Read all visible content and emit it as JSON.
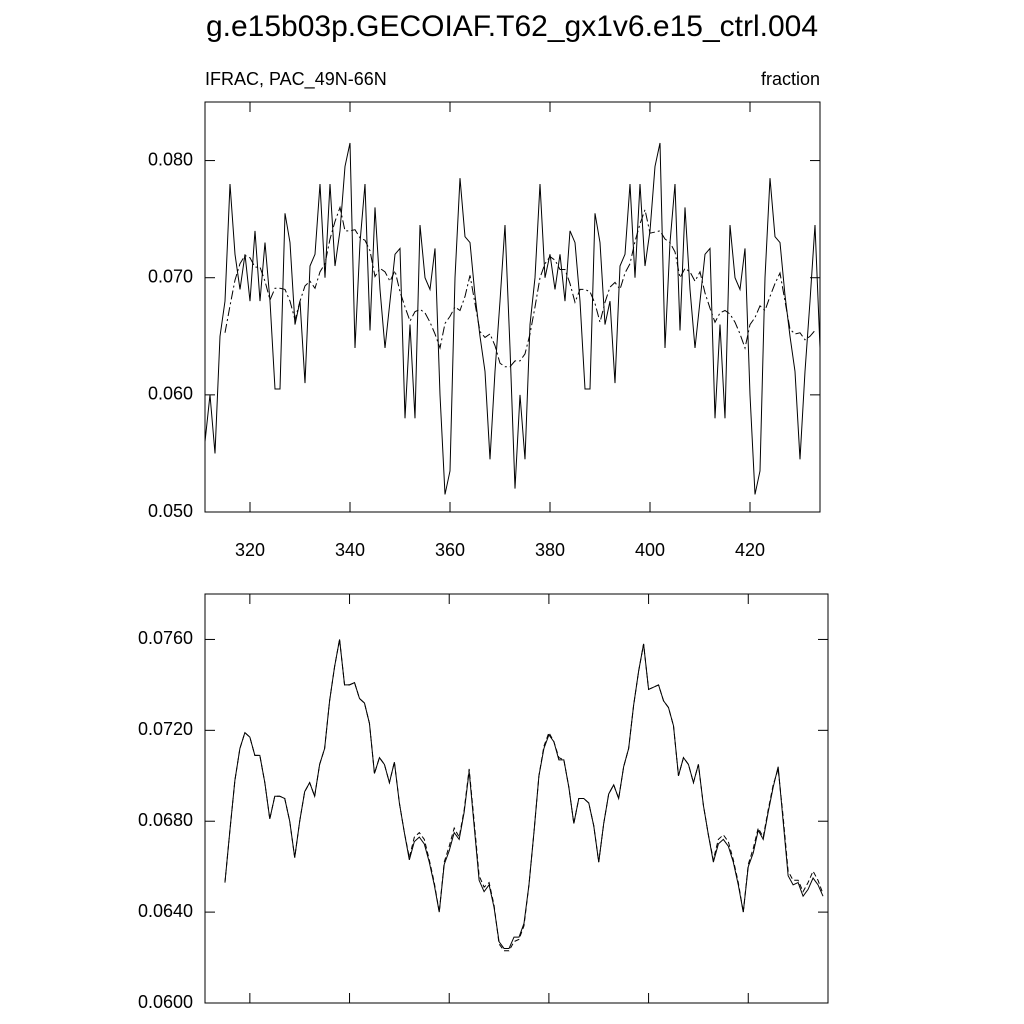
{
  "title": "g.e15b03p.GECOIAF.T62_gx1v6.e15_ctrl.004",
  "chart_data": [
    {
      "type": "line",
      "left_string": "IFRAC, PAC_49N-66N",
      "right_string": "fraction",
      "xlim": [
        311,
        434
      ],
      "ylim": [
        0.05,
        0.085
      ],
      "xticks": [
        320,
        340,
        360,
        380,
        400,
        420
      ],
      "yticks": [
        {
          "value": 0.05,
          "label": "0.050"
        },
        {
          "value": 0.06,
          "label": "0.060"
        },
        {
          "value": 0.07,
          "label": "0.070"
        },
        {
          "value": 0.08,
          "label": "0.080"
        }
      ],
      "xticklabels": true,
      "series": [
        {
          "color": "#000000",
          "style": "solid",
          "x": [
            311,
            312,
            313,
            314,
            315,
            316,
            317,
            318,
            319,
            320,
            321,
            322,
            323,
            324,
            325,
            326,
            327,
            328,
            329,
            330,
            331,
            332,
            333,
            334,
            335,
            336,
            337,
            338,
            339,
            340,
            341,
            342,
            343,
            344,
            345,
            346,
            347,
            348,
            349,
            350,
            351,
            352,
            353,
            354,
            355,
            356,
            357,
            358,
            359,
            360,
            361,
            362,
            363,
            364,
            365,
            366,
            367,
            368,
            369,
            370,
            371,
            372,
            373,
            374,
            375,
            376,
            377,
            378,
            379,
            380,
            381,
            382,
            383,
            384,
            385,
            386,
            387,
            388,
            389,
            390,
            391,
            392,
            393,
            394,
            395,
            396,
            397,
            398,
            399,
            400,
            401,
            402,
            403,
            404,
            405,
            406,
            407,
            408,
            409,
            410,
            411,
            412,
            413,
            414,
            415,
            416,
            417,
            418,
            419,
            420,
            421,
            422,
            423,
            424,
            425,
            426,
            427,
            428,
            429,
            430,
            431,
            432,
            433,
            434
          ],
          "values": [
            0.056,
            0.06,
            0.055,
            0.065,
            0.068,
            0.078,
            0.072,
            0.069,
            0.072,
            0.068,
            0.074,
            0.068,
            0.073,
            0.068,
            0.0605,
            0.0605,
            0.0755,
            0.073,
            0.066,
            0.068,
            0.061,
            0.071,
            0.072,
            0.078,
            0.07,
            0.078,
            0.071,
            0.074,
            0.0795,
            0.0815,
            0.064,
            0.073,
            0.078,
            0.0655,
            0.076,
            0.069,
            0.064,
            0.068,
            0.072,
            0.0725,
            0.058,
            0.066,
            0.058,
            0.0745,
            0.07,
            0.069,
            0.0725,
            0.06,
            0.0515,
            0.0535,
            0.07,
            0.0785,
            0.0735,
            0.073,
            0.0685,
            0.065,
            0.062,
            0.0545,
            0.062,
            0.068,
            0.0745,
            0.064,
            0.052,
            0.06,
            0.0545,
            0.066,
            0.07,
            0.078,
            0.07,
            0.072,
            0.069,
            0.072,
            0.068,
            0.074,
            0.073,
            0.068,
            0.0605,
            0.0605,
            0.0755,
            0.073,
            0.066,
            0.068,
            0.061,
            0.071,
            0.072,
            0.078,
            0.07,
            0.078,
            0.071,
            0.074,
            0.0795,
            0.0815,
            0.064,
            0.073,
            0.078,
            0.0655,
            0.076,
            0.069,
            0.064,
            0.068,
            0.072,
            0.0725,
            0.058,
            0.066,
            0.058,
            0.0745,
            0.07,
            0.069,
            0.0725,
            0.06,
            0.0515,
            0.0535,
            0.07,
            0.0785,
            0.0735,
            0.073,
            0.0685,
            0.065,
            0.062,
            0.0545,
            0.062,
            0.068,
            0.0745,
            0.064
          ]
        },
        {
          "color": "#000000",
          "style": "dashdot",
          "x": [
            315,
            316,
            317,
            318,
            319,
            320,
            321,
            322,
            323,
            324,
            325,
            326,
            327,
            328,
            329,
            330,
            331,
            332,
            333,
            334,
            335,
            336,
            337,
            338,
            339,
            340,
            341,
            342,
            343,
            344,
            345,
            346,
            347,
            348,
            349,
            350,
            351,
            352,
            353,
            354,
            355,
            356,
            357,
            358,
            359,
            360,
            361,
            362,
            363,
            364,
            365,
            366,
            367,
            368,
            369,
            370,
            371,
            372,
            373,
            374,
            375,
            376,
            377,
            378,
            379,
            380,
            381,
            382,
            383,
            384,
            385,
            386,
            387,
            388,
            389,
            390,
            391,
            392,
            393,
            394,
            395,
            396,
            397,
            398,
            399,
            400,
            401,
            402,
            403,
            404,
            405,
            406,
            407,
            408,
            409,
            410,
            411,
            412,
            413,
            414,
            415,
            416,
            417,
            418,
            419,
            420,
            421,
            422,
            423,
            424,
            425,
            426,
            427,
            428,
            429,
            430,
            431,
            432,
            433
          ],
          "values": [
            0.0653,
            0.0676,
            0.0698,
            0.0712,
            0.0719,
            0.0717,
            0.0709,
            0.0709,
            0.0697,
            0.0681,
            0.0691,
            0.0691,
            0.069,
            0.068,
            0.0664,
            0.068,
            0.0693,
            0.0697,
            0.0691,
            0.0705,
            0.0712,
            0.0733,
            0.0748,
            0.076,
            0.074,
            0.074,
            0.0741,
            0.0734,
            0.0732,
            0.0723,
            0.0701,
            0.0708,
            0.0705,
            0.0697,
            0.0706,
            0.0688,
            0.0675,
            0.0663,
            0.0671,
            0.0673,
            0.067,
            0.0662,
            0.0652,
            0.064,
            0.0661,
            0.0667,
            0.0675,
            0.0672,
            0.0684,
            0.0702,
            0.0678,
            0.0654,
            0.0649,
            0.0652,
            0.0642,
            0.0627,
            0.0624,
            0.0624,
            0.0629,
            0.0629,
            0.0635,
            0.0652,
            0.0675,
            0.07,
            0.0712,
            0.0718,
            0.0715,
            0.0707,
            0.0707,
            0.0695,
            0.0679,
            0.069,
            0.069,
            0.0688,
            0.0678,
            0.0662,
            0.0679,
            0.0692,
            0.0696,
            0.069,
            0.0704,
            0.0712,
            0.0731,
            0.0746,
            0.0758,
            0.0738,
            0.0739,
            0.074,
            0.0733,
            0.073,
            0.0722,
            0.07,
            0.0708,
            0.0705,
            0.0697,
            0.0705,
            0.0687,
            0.0674,
            0.0662,
            0.067,
            0.0672,
            0.0669,
            0.0662,
            0.0652,
            0.064,
            0.066,
            0.0666,
            0.0676,
            0.0672,
            0.0684,
            0.0695,
            0.0704,
            0.068,
            0.0656,
            0.0652,
            0.0653,
            0.0647,
            0.065,
            0.0655
          ]
        }
      ]
    },
    {
      "type": "line",
      "xlim": [
        311,
        436
      ],
      "ylim": [
        0.06,
        0.078
      ],
      "xticks": [
        320,
        340,
        360,
        380,
        400,
        420
      ],
      "yticks": [
        {
          "value": 0.06,
          "label": "0.0600"
        },
        {
          "value": 0.064,
          "label": "0.0640"
        },
        {
          "value": 0.068,
          "label": "0.0680"
        },
        {
          "value": 0.072,
          "label": "0.0720"
        },
        {
          "value": 0.076,
          "label": "0.0760"
        }
      ],
      "xticklabels": false,
      "series": [
        {
          "color": "#000000",
          "style": "solid",
          "x": [
            315,
            316,
            317,
            318,
            319,
            320,
            321,
            322,
            323,
            324,
            325,
            326,
            327,
            328,
            329,
            330,
            331,
            332,
            333,
            334,
            335,
            336,
            337,
            338,
            339,
            340,
            341,
            342,
            343,
            344,
            345,
            346,
            347,
            348,
            349,
            350,
            351,
            352,
            353,
            354,
            355,
            356,
            357,
            358,
            359,
            360,
            361,
            362,
            363,
            364,
            365,
            366,
            367,
            368,
            369,
            370,
            371,
            372,
            373,
            374,
            375,
            376,
            377,
            378,
            379,
            380,
            381,
            382,
            383,
            384,
            385,
            386,
            387,
            388,
            389,
            390,
            391,
            392,
            393,
            394,
            395,
            396,
            397,
            398,
            399,
            400,
            401,
            402,
            403,
            404,
            405,
            406,
            407,
            408,
            409,
            410,
            411,
            412,
            413,
            414,
            415,
            416,
            417,
            418,
            419,
            420,
            421,
            422,
            423,
            424,
            425,
            426,
            427,
            428,
            429,
            430,
            431,
            432,
            433,
            434,
            435
          ],
          "values": [
            0.0653,
            0.0676,
            0.0698,
            0.0712,
            0.0719,
            0.0717,
            0.0709,
            0.0709,
            0.0697,
            0.0681,
            0.0691,
            0.0691,
            0.069,
            0.068,
            0.0664,
            0.068,
            0.0693,
            0.0697,
            0.0691,
            0.0705,
            0.0712,
            0.0733,
            0.0748,
            0.076,
            0.074,
            0.074,
            0.0741,
            0.0734,
            0.0732,
            0.0723,
            0.0701,
            0.0708,
            0.0705,
            0.0697,
            0.0706,
            0.0688,
            0.0675,
            0.0663,
            0.0671,
            0.0673,
            0.067,
            0.0662,
            0.0652,
            0.064,
            0.0661,
            0.0667,
            0.0675,
            0.0672,
            0.0684,
            0.0702,
            0.0678,
            0.0654,
            0.0649,
            0.0652,
            0.0642,
            0.0627,
            0.0624,
            0.0624,
            0.0629,
            0.0629,
            0.0635,
            0.0652,
            0.0675,
            0.07,
            0.0712,
            0.0718,
            0.0715,
            0.0707,
            0.0707,
            0.0695,
            0.0679,
            0.069,
            0.069,
            0.0688,
            0.0678,
            0.0662,
            0.0679,
            0.0692,
            0.0696,
            0.069,
            0.0704,
            0.0712,
            0.0731,
            0.0746,
            0.0758,
            0.0738,
            0.0739,
            0.074,
            0.0733,
            0.073,
            0.0722,
            0.07,
            0.0708,
            0.0705,
            0.0697,
            0.0705,
            0.0687,
            0.0674,
            0.0662,
            0.067,
            0.0672,
            0.0669,
            0.0662,
            0.0652,
            0.064,
            0.066,
            0.0666,
            0.0676,
            0.0672,
            0.0684,
            0.0695,
            0.0704,
            0.068,
            0.0656,
            0.0652,
            0.0653,
            0.0647,
            0.065,
            0.0655,
            0.0652,
            0.0647
          ]
        },
        {
          "color": "#000000",
          "style": "dash",
          "x": [
            315,
            316,
            317,
            318,
            319,
            320,
            321,
            322,
            323,
            324,
            325,
            326,
            327,
            328,
            329,
            330,
            331,
            332,
            333,
            334,
            335,
            336,
            337,
            338,
            339,
            340,
            341,
            342,
            343,
            344,
            345,
            346,
            347,
            348,
            349,
            350,
            351,
            352,
            353,
            354,
            355,
            356,
            357,
            358,
            359,
            360,
            361,
            362,
            363,
            364,
            365,
            366,
            367,
            368,
            369,
            370,
            371,
            372,
            373,
            374,
            375,
            376,
            377,
            378,
            379,
            380,
            381,
            382,
            383,
            384,
            385,
            386,
            387,
            388,
            389,
            390,
            391,
            392,
            393,
            394,
            395,
            396,
            397,
            398,
            399,
            400,
            401,
            402,
            403,
            404,
            405,
            406,
            407,
            408,
            409,
            410,
            411,
            412,
            413,
            414,
            415,
            416,
            417,
            418,
            419,
            420,
            421,
            422,
            423,
            424,
            425,
            426,
            427,
            428,
            429,
            430,
            431,
            432,
            433,
            434,
            435
          ],
          "values": [
            0.0653,
            0.0676,
            0.0698,
            0.0712,
            0.0719,
            0.0717,
            0.0709,
            0.0709,
            0.0697,
            0.0681,
            0.0691,
            0.0691,
            0.069,
            0.068,
            0.0664,
            0.068,
            0.0693,
            0.0697,
            0.0691,
            0.0705,
            0.0712,
            0.0733,
            0.0748,
            0.076,
            0.074,
            0.074,
            0.0741,
            0.0734,
            0.0732,
            0.0723,
            0.0701,
            0.0708,
            0.0705,
            0.0697,
            0.0706,
            0.0688,
            0.0675,
            0.0664,
            0.0673,
            0.0675,
            0.0672,
            0.0663,
            0.0653,
            0.064,
            0.0662,
            0.0669,
            0.0677,
            0.0673,
            0.0685,
            0.0703,
            0.068,
            0.0656,
            0.0651,
            0.0653,
            0.0643,
            0.0626,
            0.0623,
            0.0623,
            0.0627,
            0.0628,
            0.0634,
            0.0652,
            0.0675,
            0.07,
            0.0713,
            0.0719,
            0.0715,
            0.0708,
            0.0707,
            0.0695,
            0.0679,
            0.069,
            0.069,
            0.0688,
            0.0678,
            0.0662,
            0.0679,
            0.0692,
            0.0696,
            0.069,
            0.0704,
            0.0712,
            0.0731,
            0.0746,
            0.0758,
            0.0738,
            0.0739,
            0.074,
            0.0733,
            0.073,
            0.0722,
            0.07,
            0.0708,
            0.0705,
            0.0697,
            0.0705,
            0.0687,
            0.0674,
            0.0663,
            0.0672,
            0.0674,
            0.0671,
            0.0663,
            0.0653,
            0.064,
            0.0661,
            0.0668,
            0.0677,
            0.0673,
            0.0685,
            0.0696,
            0.0703,
            0.0682,
            0.0658,
            0.0654,
            0.0654,
            0.0649,
            0.0653,
            0.0658,
            0.0654,
            0.0648
          ]
        }
      ]
    }
  ]
}
